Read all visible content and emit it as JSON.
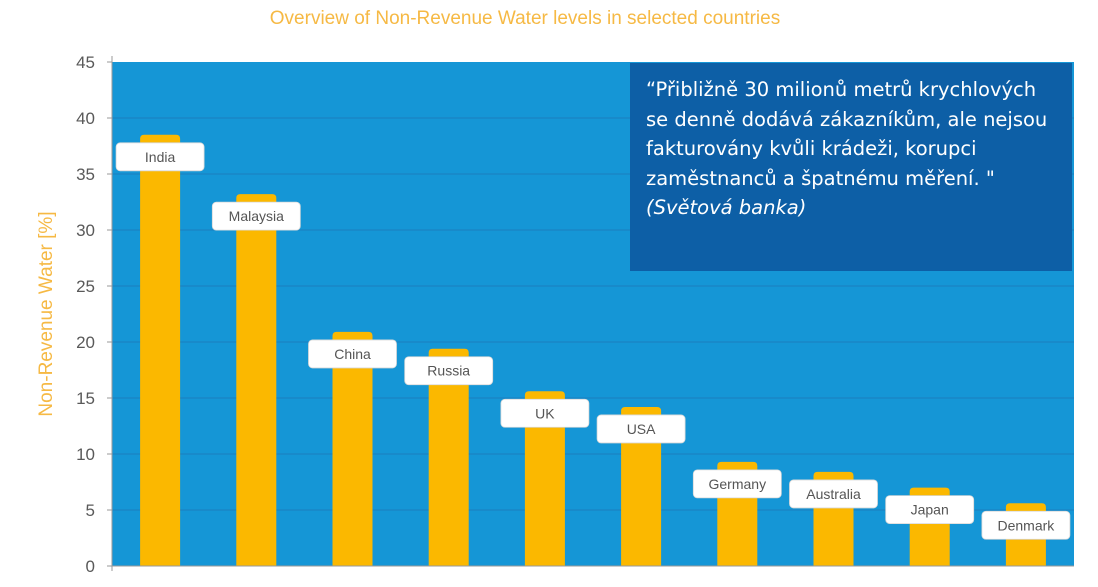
{
  "chart_data": {
    "type": "bar",
    "title": "Overview of Non-Revenue Water levels in selected countries",
    "xlabel": "",
    "ylabel": "Non-Revenue Water [%]",
    "ylim": [
      0,
      45
    ],
    "yticks": [
      0,
      5,
      10,
      15,
      20,
      25,
      30,
      35,
      40,
      45
    ],
    "grid": true,
    "categories": [
      "India",
      "Malaysia",
      "China",
      "Russia",
      "UK",
      "USA",
      "Germany",
      "Australia",
      "Japan",
      "Denmark"
    ],
    "values": [
      38.5,
      33.2,
      20.9,
      19.4,
      15.6,
      14.2,
      9.3,
      8.4,
      7.0,
      5.6
    ]
  },
  "colors": {
    "plot_background": "#1596d6",
    "bar": "#fbb800",
    "title": "#f6b944",
    "ylabel": "#f6b944",
    "tick_label": "#595959",
    "gridline": "#1a7fbf",
    "label_box": "#ffffff",
    "quote_box": "#0d5fa6"
  },
  "quote": {
    "text": "“Přibližně 30 milionů metrů krychlových se denně dodává zákazníkům, ale nejsou fakturovány kvůli krádeži, korupci zaměstnanců a špatnému měření. \"",
    "source": "(Světová banka)"
  }
}
